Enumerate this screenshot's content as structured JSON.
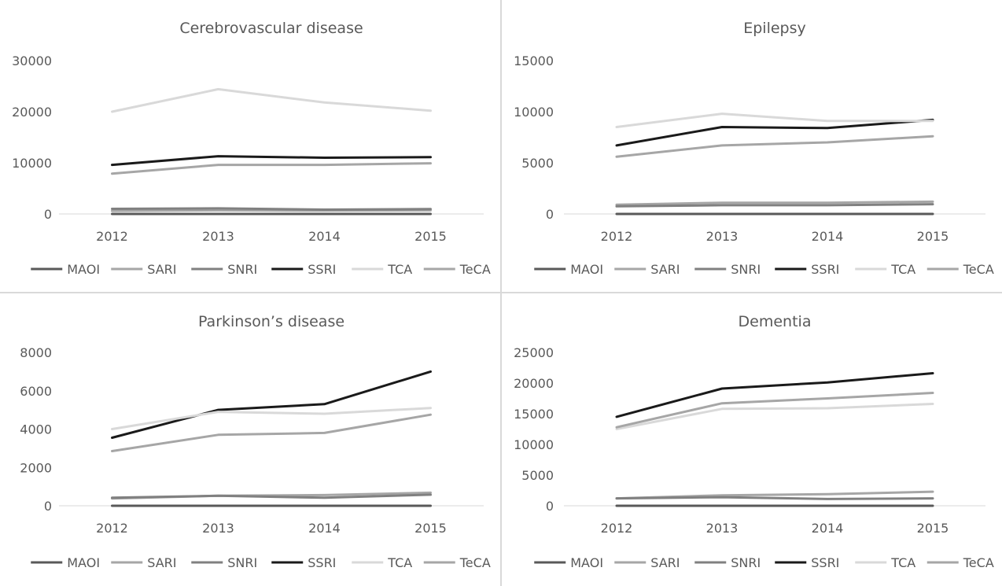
{
  "chart_data": [
    {
      "type": "line",
      "title": "Cerebrovascular disease",
      "categories": [
        "2012",
        "2013",
        "2014",
        "2015"
      ],
      "ylim": [
        0,
        30000
      ],
      "yticks": [
        "0",
        "10000",
        "20000",
        "30000"
      ],
      "xlabel": "",
      "ylabel": "",
      "legend": "bottom",
      "series": [
        {
          "name": "MAOI",
          "color": "#595959",
          "values": [
            0,
            0,
            0,
            0
          ]
        },
        {
          "name": "SARI",
          "color": "#a6a6a6",
          "values": [
            600,
            700,
            650,
            700
          ]
        },
        {
          "name": "SNRI",
          "color": "#808080",
          "values": [
            1000,
            1100,
            850,
            950
          ]
        },
        {
          "name": "SSRI",
          "color": "#1a1a1a",
          "values": [
            9600,
            11300,
            11000,
            11100
          ]
        },
        {
          "name": "TCA",
          "color": "#d9d9d9",
          "values": [
            20000,
            24400,
            21800,
            20200
          ]
        },
        {
          "name": "TeCA",
          "color": "#a6a6a6",
          "values": [
            7900,
            9600,
            9600,
            9900
          ]
        }
      ]
    },
    {
      "type": "line",
      "title": "Epilepsy",
      "categories": [
        "2012",
        "2013",
        "2014",
        "2015"
      ],
      "ylim": [
        0,
        15000
      ],
      "yticks": [
        "0",
        "5000",
        "10000",
        "15000"
      ],
      "xlabel": "",
      "ylabel": "",
      "legend": "bottom",
      "series": [
        {
          "name": "MAOI",
          "color": "#595959",
          "values": [
            0,
            0,
            0,
            0
          ]
        },
        {
          "name": "SARI",
          "color": "#a6a6a6",
          "values": [
            900,
            1100,
            1100,
            1200
          ]
        },
        {
          "name": "SNRI",
          "color": "#808080",
          "values": [
            750,
            850,
            850,
            950
          ]
        },
        {
          "name": "SSRI",
          "color": "#1a1a1a",
          "values": [
            6700,
            8500,
            8400,
            9200
          ]
        },
        {
          "name": "TCA",
          "color": "#d9d9d9",
          "values": [
            8500,
            9800,
            9100,
            9100
          ]
        },
        {
          "name": "TeCA",
          "color": "#a6a6a6",
          "values": [
            5600,
            6700,
            7000,
            7600
          ]
        }
      ]
    },
    {
      "type": "line",
      "title": "Parkinson’s disease",
      "categories": [
        "2012",
        "2013",
        "2014",
        "2015"
      ],
      "ylim": [
        0,
        8000
      ],
      "yticks": [
        "0",
        "2000",
        "4000",
        "6000",
        "8000"
      ],
      "xlabel": "",
      "ylabel": "",
      "legend": "bottom",
      "series": [
        {
          "name": "MAOI",
          "color": "#595959",
          "values": [
            0,
            0,
            0,
            0
          ]
        },
        {
          "name": "SARI",
          "color": "#a6a6a6",
          "values": [
            380,
            520,
            560,
            680
          ]
        },
        {
          "name": "SNRI",
          "color": "#808080",
          "values": [
            420,
            520,
            420,
            580
          ]
        },
        {
          "name": "SSRI",
          "color": "#1a1a1a",
          "values": [
            3550,
            5000,
            5300,
            7000
          ]
        },
        {
          "name": "TCA",
          "color": "#d9d9d9",
          "values": [
            4000,
            4900,
            4800,
            5100
          ]
        },
        {
          "name": "TeCA",
          "color": "#a6a6a6",
          "values": [
            2850,
            3700,
            3800,
            4750
          ]
        }
      ]
    },
    {
      "type": "line",
      "title": "Dementia",
      "categories": [
        "2012",
        "2013",
        "2014",
        "2015"
      ],
      "ylim": [
        0,
        25000
      ],
      "yticks": [
        "0",
        "5000",
        "10000",
        "15000",
        "20000",
        "25000"
      ],
      "xlabel": "",
      "ylabel": "",
      "legend": "bottom",
      "series": [
        {
          "name": "MAOI",
          "color": "#595959",
          "values": [
            0,
            0,
            0,
            0
          ]
        },
        {
          "name": "SARI",
          "color": "#a6a6a6",
          "values": [
            1200,
            1700,
            1900,
            2300
          ]
        },
        {
          "name": "SNRI",
          "color": "#808080",
          "values": [
            1200,
            1400,
            1100,
            1200
          ]
        },
        {
          "name": "SSRI",
          "color": "#1a1a1a",
          "values": [
            14500,
            19100,
            20100,
            21600
          ]
        },
        {
          "name": "TCA",
          "color": "#d9d9d9",
          "values": [
            12500,
            15800,
            15900,
            16600
          ]
        },
        {
          "name": "TeCA",
          "color": "#a6a6a6",
          "values": [
            12800,
            16700,
            17500,
            18400
          ]
        }
      ]
    }
  ]
}
